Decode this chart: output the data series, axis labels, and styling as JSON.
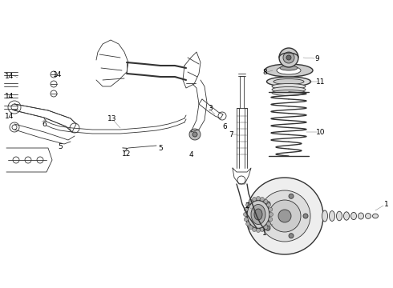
{
  "background_color": "#ffffff",
  "line_color": "#333333",
  "fig_width": 4.9,
  "fig_height": 3.6,
  "dpi": 100,
  "xlim": [
    0,
    490
  ],
  "ylim": [
    0,
    360
  ]
}
